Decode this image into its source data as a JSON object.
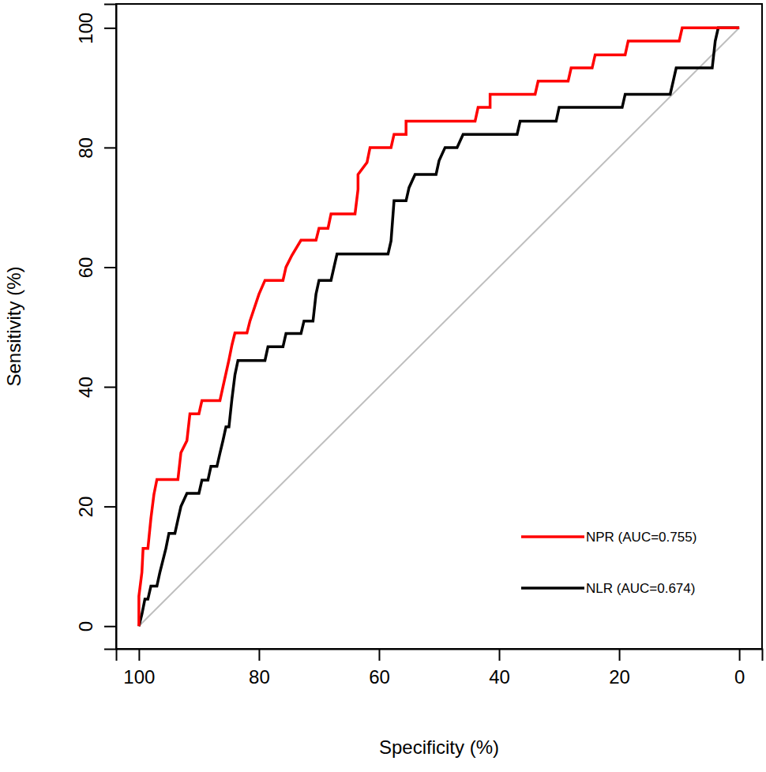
{
  "chart_data": {
    "type": "line",
    "x_label": "Specificity (%)",
    "y_label": "Sensitivity (%)",
    "xlim": [
      103.8,
      -3.8
    ],
    "ylim": [
      -3.8,
      104
    ],
    "xticks": [
      100,
      80,
      60,
      40,
      20,
      0
    ],
    "yticks": [
      0,
      20,
      40,
      60,
      80,
      100
    ],
    "legend": "lower right",
    "series": [
      {
        "name": "NPR (AUC=0.755)",
        "color": "#ff0000",
        "x": [
          100,
          100,
          99.5,
          99.3,
          98.5,
          98,
          97.5,
          97,
          93.5,
          93,
          92,
          91.5,
          90,
          89.5,
          86.5,
          86,
          85,
          84.5,
          84,
          82,
          81.5,
          80,
          79,
          76,
          75.5,
          74.5,
          73,
          70.5,
          70,
          68.5,
          68,
          64,
          63.5,
          63.5,
          62,
          61.5,
          58,
          57.5,
          55.5,
          55.5,
          44,
          43.5,
          41.5,
          41.5,
          34,
          33.5,
          28.5,
          28,
          24.5,
          24,
          19,
          18.5,
          10,
          9.5,
          0
        ],
        "values": [
          0,
          5,
          9,
          13,
          13,
          18,
          22,
          24.5,
          24.5,
          29,
          31,
          35.5,
          35.5,
          37.7,
          37.7,
          40,
          44.5,
          47,
          49,
          49,
          51,
          55.5,
          57.8,
          57.8,
          60,
          62,
          64.5,
          64.5,
          66.5,
          66.5,
          68.9,
          68.9,
          73,
          75.5,
          77.5,
          80,
          80,
          82.2,
          82.2,
          84.4,
          84.4,
          86.7,
          86.7,
          88.9,
          88.9,
          91.1,
          91.1,
          93.3,
          93.3,
          95.5,
          95.5,
          97.8,
          97.8,
          100,
          100
        ]
      },
      {
        "name": "NLR (AUC=0.674)",
        "color": "#000000",
        "x": [
          100,
          99.5,
          99,
          98.5,
          98,
          97,
          96.5,
          96,
          95.5,
          95,
          94,
          93.5,
          93,
          92,
          90,
          89.5,
          88.5,
          88,
          87,
          86.5,
          86,
          85.5,
          85,
          84.5,
          84,
          83.5,
          79,
          78.5,
          76,
          75.5,
          73,
          72.5,
          71,
          70.5,
          70,
          68,
          67.5,
          67,
          58.5,
          58,
          57.5,
          55.5,
          55,
          54,
          50.5,
          50,
          49,
          47,
          46,
          37,
          36.5,
          30.5,
          30,
          19.5,
          19,
          11.5,
          11,
          10.5,
          4.5,
          4,
          3.5,
          0
        ],
        "values": [
          0,
          2,
          4.5,
          4.5,
          6.7,
          6.7,
          9,
          11,
          13,
          15.5,
          15.5,
          17.8,
          20,
          22.2,
          22.2,
          24.4,
          24.4,
          26.7,
          26.7,
          28.9,
          31,
          33.3,
          33.3,
          38,
          42,
          44.4,
          44.4,
          46.7,
          46.7,
          48.9,
          48.9,
          51,
          51,
          55.5,
          57.8,
          57.8,
          60,
          62.2,
          62.2,
          64.4,
          71.1,
          71.1,
          73.3,
          75.5,
          75.5,
          77.8,
          80,
          80,
          82.2,
          82.2,
          84.4,
          84.4,
          86.7,
          86.7,
          88.9,
          88.9,
          91.1,
          93.3,
          93.3,
          97.8,
          100,
          100
        ]
      }
    ]
  }
}
